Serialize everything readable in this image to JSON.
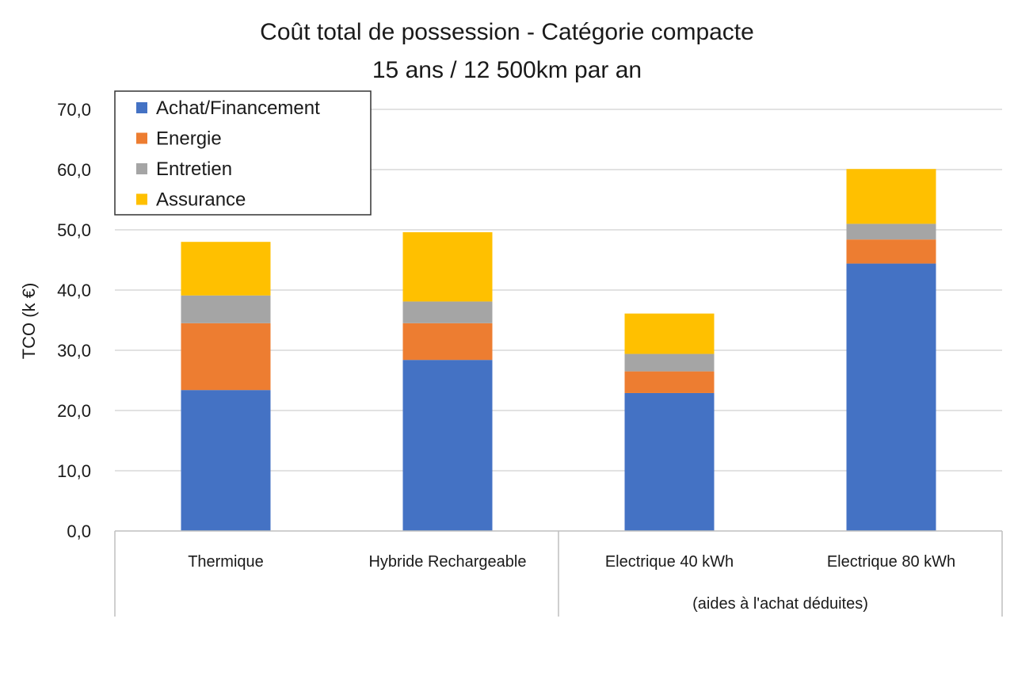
{
  "chart_data": {
    "type": "bar",
    "stacked": true,
    "title": "Coût total de possession - Catégorie compacte",
    "subtitle": "15 ans / 12 500km par an",
    "ylabel": "TCO (k €)",
    "xlabel": "",
    "ylim": [
      0,
      70
    ],
    "yticks": [
      "0,0",
      "10,0",
      "20,0",
      "30,0",
      "40,0",
      "50,0",
      "60,0",
      "70,0"
    ],
    "grid": true,
    "legend_position": "top-left",
    "categories": [
      "Thermique",
      "Hybride Rechargeable",
      "Electrique 40 kWh",
      "Electrique 80 kWh"
    ],
    "group_label": "(aides à l'achat déduites)",
    "series": [
      {
        "name": "Achat/Financement",
        "color": "#4472C4",
        "values": [
          23.4,
          28.4,
          22.9,
          44.4
        ]
      },
      {
        "name": "Energie",
        "color": "#ED7D31",
        "values": [
          11.1,
          6.1,
          3.6,
          4.0
        ]
      },
      {
        "name": "Entretien",
        "color": "#A5A5A5",
        "values": [
          4.6,
          3.6,
          2.9,
          2.6
        ]
      },
      {
        "name": "Assurance",
        "color": "#FFC000",
        "values": [
          8.9,
          11.5,
          6.7,
          9.1
        ]
      }
    ]
  }
}
